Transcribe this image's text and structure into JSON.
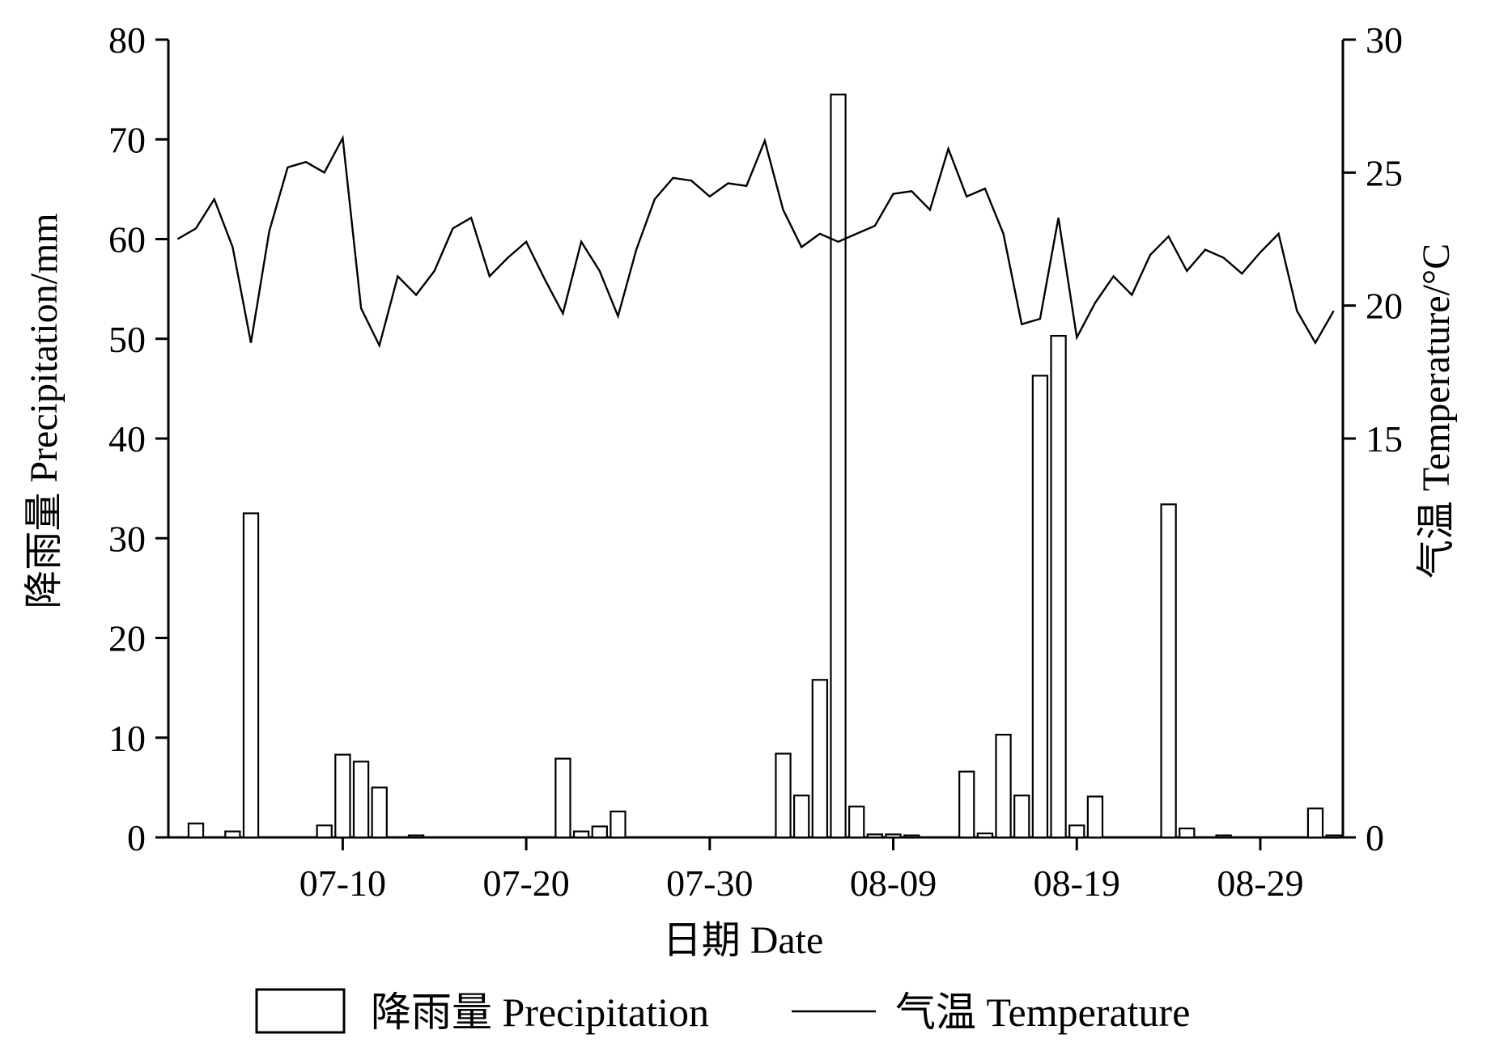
{
  "chart_data": {
    "type": "bar+line",
    "x_type": "date",
    "x": [
      "07-01",
      "07-02",
      "07-03",
      "07-04",
      "07-05",
      "07-06",
      "07-07",
      "07-08",
      "07-09",
      "07-10",
      "07-11",
      "07-12",
      "07-13",
      "07-14",
      "07-15",
      "07-16",
      "07-17",
      "07-18",
      "07-19",
      "07-20",
      "07-21",
      "07-22",
      "07-23",
      "07-24",
      "07-25",
      "07-26",
      "07-27",
      "07-28",
      "07-29",
      "07-30",
      "07-31",
      "08-01",
      "08-02",
      "08-03",
      "08-04",
      "08-05",
      "08-06",
      "08-07",
      "08-08",
      "08-09",
      "08-10",
      "08-11",
      "08-12",
      "08-13",
      "08-14",
      "08-15",
      "08-16",
      "08-17",
      "08-18",
      "08-19",
      "08-20",
      "08-21",
      "08-22",
      "08-23",
      "08-24",
      "08-25",
      "08-26",
      "08-27",
      "08-28",
      "08-29",
      "08-30",
      "08-31",
      "09-01",
      "09-02"
    ],
    "xlabel": "日期  Date",
    "x_ticks": [
      "07-10",
      "07-20",
      "07-30",
      "08-09",
      "08-19",
      "08-29"
    ],
    "y_left": {
      "label": "降雨量 Precipitation/mm",
      "lim": [
        0,
        80
      ],
      "ticks": [
        "0",
        "10",
        "20",
        "30",
        "40",
        "50",
        "60",
        "70",
        "80"
      ]
    },
    "y_right": {
      "label": "气温 Temperature/°C",
      "lim": [
        0,
        30
      ],
      "ticks": [
        "0",
        "15",
        "20",
        "25",
        "30"
      ]
    },
    "series": [
      {
        "name": "降雨量 Precipitation",
        "type": "bar",
        "axis": "left",
        "values": [
          0,
          1.4,
          0,
          0.6,
          32.5,
          0,
          0,
          0,
          1.2,
          8.3,
          7.6,
          5.0,
          0,
          0.2,
          0,
          0,
          0,
          0,
          0,
          0,
          0,
          7.9,
          0.6,
          1.1,
          2.6,
          0,
          0,
          0,
          0,
          0,
          0,
          0,
          0,
          8.4,
          4.2,
          15.8,
          74.5,
          3.1,
          0.3,
          0.3,
          0.2,
          0,
          0,
          6.6,
          0.4,
          10.3,
          4.2,
          46.3,
          50.3,
          1.2,
          4.1,
          0,
          0,
          0,
          33.4,
          0.9,
          0,
          0.2,
          0,
          0,
          0,
          0,
          2.9,
          0.2
        ]
      },
      {
        "name": "气温 Temperature",
        "type": "line",
        "axis": "right",
        "values": [
          22.5,
          22.9,
          24.0,
          22.2,
          18.6,
          22.8,
          25.2,
          25.4,
          25.0,
          26.3,
          19.9,
          18.5,
          21.1,
          20.4,
          21.3,
          22.9,
          23.3,
          21.1,
          21.8,
          22.4,
          21.0,
          19.7,
          22.4,
          21.3,
          19.6,
          22.1,
          24.0,
          24.8,
          24.7,
          24.1,
          24.6,
          24.5,
          26.2,
          23.6,
          22.2,
          22.7,
          22.4,
          22.7,
          23.0,
          24.2,
          24.3,
          23.6,
          25.9,
          24.1,
          24.4,
          22.7,
          19.3,
          19.5,
          23.3,
          18.8,
          20.1,
          21.1,
          20.4,
          21.9,
          22.6,
          21.3,
          22.1,
          21.8,
          21.2,
          22.0,
          22.7,
          19.8,
          18.6,
          19.8
        ]
      }
    ],
    "legend": {
      "position": "bottom-center",
      "items": [
        {
          "label": "降雨量 Precipitation",
          "symbol": "box"
        },
        {
          "label": "气温 Temperature",
          "symbol": "line"
        }
      ]
    },
    "grid": false,
    "colors": {
      "stroke": "#000000",
      "bar_fill": "#ffffff",
      "background": "#ffffff"
    }
  }
}
